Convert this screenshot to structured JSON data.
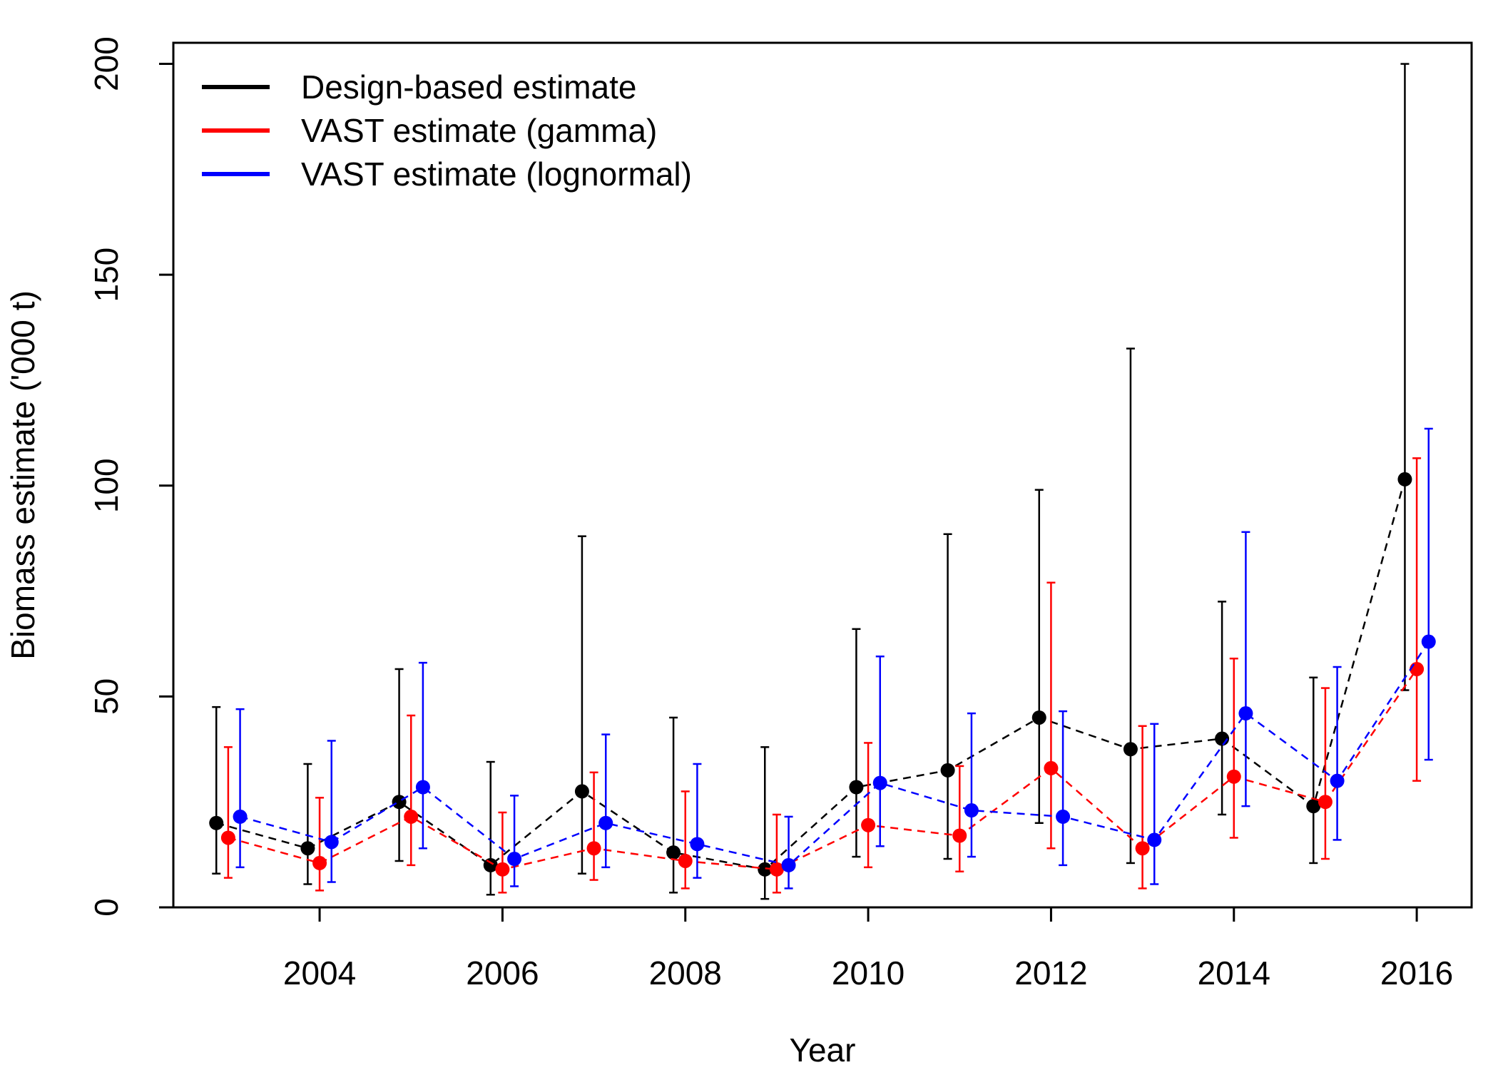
{
  "chart_data": {
    "type": "line",
    "xlabel": "Year",
    "ylabel": "Biomass estimate ('000 t)",
    "xlim": [
      2002.4,
      2016.6
    ],
    "ylim": [
      0,
      205
    ],
    "x_ticks": [
      2004,
      2006,
      2008,
      2010,
      2012,
      2014,
      2016
    ],
    "y_ticks": [
      0,
      50,
      100,
      150,
      200
    ],
    "grid": false,
    "legend_position": "top-left",
    "series": [
      {
        "name": "Design-based estimate",
        "color": "#000000",
        "x": [
          2003,
          2004,
          2005,
          2006,
          2007,
          2008,
          2009,
          2010,
          2011,
          2012,
          2013,
          2014,
          2015,
          2016
        ],
        "y": [
          20,
          14,
          25,
          10,
          27.5,
          13,
          9,
          28.5,
          32.5,
          45,
          37.5,
          40,
          24,
          101.5
        ],
        "lower": [
          8,
          5.5,
          11,
          3,
          8,
          3.5,
          2,
          12,
          11.5,
          20,
          10.5,
          22,
          10.5,
          51.5
        ],
        "upper": [
          47.5,
          34,
          56.5,
          34.5,
          88,
          45,
          38,
          66,
          88.5,
          99,
          132.5,
          72.5,
          54.5,
          200
        ]
      },
      {
        "name": "VAST estimate (gamma)",
        "color": "#ff0000",
        "x": [
          2003,
          2004,
          2005,
          2006,
          2007,
          2008,
          2009,
          2010,
          2011,
          2012,
          2013,
          2014,
          2015,
          2016
        ],
        "y": [
          16.5,
          10.5,
          21.5,
          9,
          14,
          11,
          9,
          19.5,
          17,
          33,
          14,
          31,
          25,
          56.5
        ],
        "lower": [
          7,
          4,
          10,
          3.5,
          6.5,
          4.5,
          3.5,
          9.5,
          8.5,
          14,
          4.5,
          16.5,
          11.5,
          30
        ],
        "upper": [
          38,
          26,
          45.5,
          22.5,
          32,
          27.5,
          22,
          39,
          33.5,
          77,
          43,
          59,
          52,
          106.5
        ]
      },
      {
        "name": "VAST estimate (lognormal)",
        "color": "#0000ff",
        "x": [
          2003,
          2004,
          2005,
          2006,
          2007,
          2008,
          2009,
          2010,
          2011,
          2012,
          2013,
          2014,
          2015,
          2016
        ],
        "y": [
          21.5,
          15.5,
          28.5,
          11.5,
          20,
          15,
          10,
          29.5,
          23,
          21.5,
          16,
          46,
          30,
          63
        ],
        "lower": [
          9.5,
          6,
          14,
          5,
          9.5,
          7,
          4.5,
          14.5,
          12,
          10,
          5.5,
          24,
          16,
          35
        ],
        "upper": [
          47,
          39.5,
          58,
          26.5,
          41,
          34,
          21.5,
          59.5,
          46,
          46.5,
          43.5,
          89,
          57,
          113.5
        ]
      }
    ]
  }
}
